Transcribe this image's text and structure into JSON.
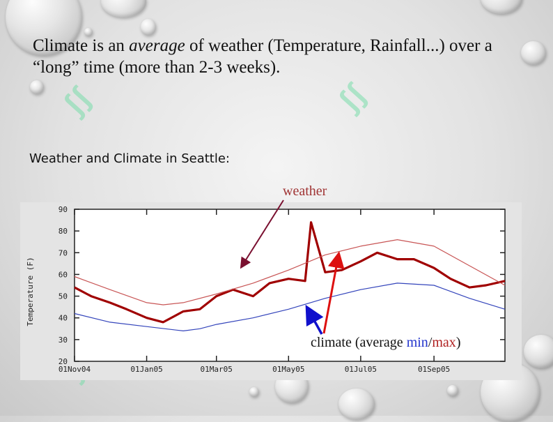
{
  "slide": {
    "title_lead": "Climate is an ",
    "title_emph": "average",
    "title_rest": " of weather (Temperature, Rainfall...) over a “long” time (more than 2-3 weeks).",
    "subtitle": "Weather and Climate in Seattle:"
  },
  "annotations": {
    "weather": "weather",
    "climate_lead": "climate (average ",
    "climate_min": "min",
    "climate_sep": "/",
    "climate_max": "max",
    "climate_close": ")"
  },
  "colors": {
    "weather_series": "#a00000",
    "climate_min": "#3344bb",
    "climate_max": "#c85555",
    "weather_arrow": "#7a1030",
    "min_arrow": "#1010cc",
    "max_arrow": "#dd1010"
  },
  "chart_data": {
    "type": "line",
    "ylabel": "Temperature (F)",
    "xlabel": "",
    "ylim": [
      20,
      90
    ],
    "yticks": [
      20,
      30,
      40,
      50,
      60,
      70,
      80,
      90
    ],
    "x_range": [
      "2004-11-01",
      "2005-10-31"
    ],
    "xticks": [
      {
        "label": "01Nov04",
        "date": "2004-11-01"
      },
      {
        "label": "01Jan05",
        "date": "2005-01-01"
      },
      {
        "label": "01Mar05",
        "date": "2005-03-01"
      },
      {
        "label": "01May05",
        "date": "2005-05-01"
      },
      {
        "label": "01Jul05",
        "date": "2005-07-01"
      },
      {
        "label": "01Sep05",
        "date": "2005-09-01"
      }
    ],
    "series": [
      {
        "name": "max",
        "points": [
          [
            "2004-11-01",
            59
          ],
          [
            "2004-12-01",
            53
          ],
          [
            "2005-01-01",
            47
          ],
          [
            "2005-01-15",
            46
          ],
          [
            "2005-02-01",
            47
          ],
          [
            "2005-03-01",
            51
          ],
          [
            "2005-04-01",
            56
          ],
          [
            "2005-05-01",
            62
          ],
          [
            "2005-06-01",
            69
          ],
          [
            "2005-07-01",
            73
          ],
          [
            "2005-08-01",
            76
          ],
          [
            "2005-09-01",
            73
          ],
          [
            "2005-10-01",
            64
          ],
          [
            "2005-10-31",
            55
          ]
        ]
      },
      {
        "name": "min",
        "points": [
          [
            "2004-11-01",
            42
          ],
          [
            "2004-12-01",
            38
          ],
          [
            "2005-01-01",
            36
          ],
          [
            "2005-02-01",
            34
          ],
          [
            "2005-02-15",
            35
          ],
          [
            "2005-03-01",
            37
          ],
          [
            "2005-04-01",
            40
          ],
          [
            "2005-05-01",
            44
          ],
          [
            "2005-06-01",
            49
          ],
          [
            "2005-07-01",
            53
          ],
          [
            "2005-08-01",
            56
          ],
          [
            "2005-09-01",
            55
          ],
          [
            "2005-10-01",
            49
          ],
          [
            "2005-10-31",
            44
          ]
        ]
      },
      {
        "name": "weather",
        "points": [
          [
            "2004-11-01",
            54
          ],
          [
            "2004-11-15",
            50
          ],
          [
            "2004-12-01",
            47
          ],
          [
            "2004-12-15",
            44
          ],
          [
            "2005-01-01",
            40
          ],
          [
            "2005-01-15",
            38
          ],
          [
            "2005-02-01",
            43
          ],
          [
            "2005-02-15",
            44
          ],
          [
            "2005-03-01",
            50
          ],
          [
            "2005-03-15",
            53
          ],
          [
            "2005-04-01",
            50
          ],
          [
            "2005-04-15",
            56
          ],
          [
            "2005-05-01",
            58
          ],
          [
            "2005-05-15",
            57
          ],
          [
            "2005-05-20",
            84
          ],
          [
            "2005-06-01",
            61
          ],
          [
            "2005-06-15",
            62
          ],
          [
            "2005-07-01",
            66
          ],
          [
            "2005-07-15",
            70
          ],
          [
            "2005-08-01",
            67
          ],
          [
            "2005-08-15",
            67
          ],
          [
            "2005-09-01",
            63
          ],
          [
            "2005-09-15",
            58
          ],
          [
            "2005-10-01",
            54
          ],
          [
            "2005-10-15",
            55
          ],
          [
            "2005-10-31",
            57
          ]
        ]
      }
    ]
  }
}
